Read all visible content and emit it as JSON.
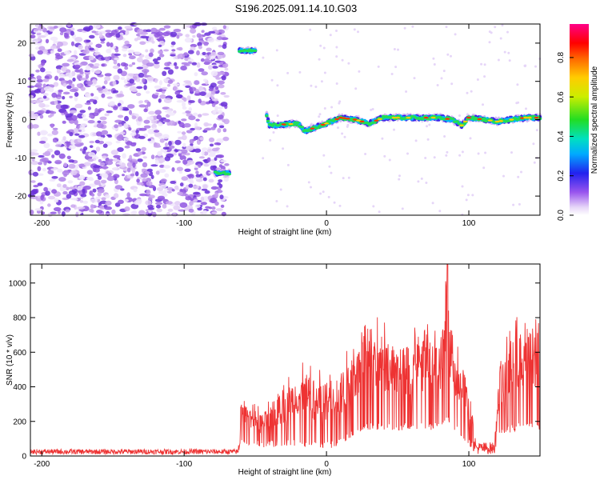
{
  "title": "S196.2025.091.14.10.G03",
  "chart_data": [
    {
      "type": "heatmap",
      "xlabel": "Height of straight line (km)",
      "ylabel": "Frequency (Hz)",
      "xlim": [
        -208,
        150
      ],
      "ylim": [
        -25,
        25
      ],
      "xticks": [
        -200,
        -100,
        0,
        100
      ],
      "yticks": [
        -20,
        -10,
        0,
        10,
        20
      ],
      "colorbar": {
        "label": "Normalized spectral amplitude",
        "range": [
          0,
          0.97
        ],
        "ticks": [
          0.0,
          0.2,
          0.4,
          0.6,
          0.8
        ]
      },
      "ridge": [
        {
          "x": -73,
          "f": -14
        },
        {
          "x": -55,
          "f": 18
        },
        {
          "x": -40,
          "f": -1.5
        },
        {
          "x": -20,
          "f": -1
        },
        {
          "x": -15,
          "f": -3
        },
        {
          "x": 0,
          "f": -1
        },
        {
          "x": 10,
          "f": 0.5
        },
        {
          "x": 20,
          "f": 0
        },
        {
          "x": 30,
          "f": -1
        },
        {
          "x": 40,
          "f": 0.5
        },
        {
          "x": 50,
          "f": 0.5
        },
        {
          "x": 60,
          "f": 0.5
        },
        {
          "x": 70,
          "f": 0.5
        },
        {
          "x": 80,
          "f": 0.5
        },
        {
          "x": 88,
          "f": 0
        },
        {
          "x": 95,
          "f": -1.5
        },
        {
          "x": 100,
          "f": 0.5
        },
        {
          "x": 110,
          "f": 0
        },
        {
          "x": 120,
          "f": -0.5
        },
        {
          "x": 130,
          "f": 0
        },
        {
          "x": 140,
          "f": 0.5
        },
        {
          "x": 150,
          "f": 0.5
        }
      ],
      "noise_region": [
        -208,
        -70
      ]
    },
    {
      "type": "line",
      "xlabel": "Height of straight line (km)",
      "ylabel": "SNR (10 * v/v)",
      "xlim": [
        -208,
        150
      ],
      "ylim": [
        0,
        1110
      ],
      "xticks": [
        -200,
        -100,
        0,
        100
      ],
      "yticks": [
        0,
        200,
        400,
        600,
        800,
        1000
      ],
      "series": [
        {
          "color": "#ee3333",
          "envelope": [
            {
              "x": -208,
              "lo": 10,
              "hi": 40
            },
            {
              "x": -62,
              "lo": 10,
              "hi": 40
            },
            {
              "x": -60,
              "lo": 80,
              "hi": 340
            },
            {
              "x": -45,
              "lo": 40,
              "hi": 280
            },
            {
              "x": -30,
              "lo": 60,
              "hi": 420
            },
            {
              "x": -20,
              "lo": 60,
              "hi": 550
            },
            {
              "x": -10,
              "lo": 40,
              "hi": 520
            },
            {
              "x": 0,
              "lo": 40,
              "hi": 520
            },
            {
              "x": 10,
              "lo": 60,
              "hi": 560
            },
            {
              "x": 20,
              "lo": 120,
              "hi": 680
            },
            {
              "x": 30,
              "lo": 150,
              "hi": 820
            },
            {
              "x": 40,
              "lo": 150,
              "hi": 800
            },
            {
              "x": 50,
              "lo": 150,
              "hi": 700
            },
            {
              "x": 60,
              "lo": 150,
              "hi": 740
            },
            {
              "x": 70,
              "lo": 150,
              "hi": 760
            },
            {
              "x": 80,
              "lo": 150,
              "hi": 780
            },
            {
              "x": 85,
              "lo": 200,
              "hi": 1110
            },
            {
              "x": 90,
              "lo": 150,
              "hi": 700
            },
            {
              "x": 100,
              "lo": 60,
              "hi": 450
            },
            {
              "x": 105,
              "lo": 10,
              "hi": 80
            },
            {
              "x": 118,
              "lo": 10,
              "hi": 80
            },
            {
              "x": 122,
              "lo": 120,
              "hi": 620
            },
            {
              "x": 135,
              "lo": 150,
              "hi": 830
            },
            {
              "x": 150,
              "lo": 150,
              "hi": 880
            }
          ]
        }
      ]
    }
  ]
}
